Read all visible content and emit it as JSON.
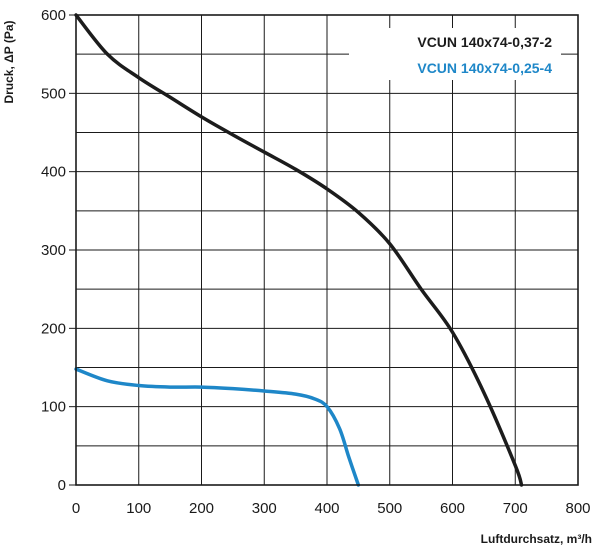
{
  "chart_data": {
    "type": "line",
    "title": "",
    "xlabel": "Luftdurchsatz, m³/h",
    "ylabel": "Druck, ΔP (Pa)",
    "xlim": [
      0,
      800
    ],
    "ylim": [
      0,
      600
    ],
    "x_ticks": [
      "0",
      "100",
      "200",
      "300",
      "400",
      "500",
      "600",
      "700",
      "800"
    ],
    "y_ticks": [
      "0",
      "100",
      "200",
      "300",
      "400",
      "500",
      "600"
    ],
    "grid": true,
    "legend_position": "top-right",
    "series": [
      {
        "name": "VCUN 140x74-0,37-2",
        "color": "#1c1c1c",
        "x": [
          0,
          50,
          100,
          150,
          200,
          250,
          300,
          350,
          400,
          450,
          500,
          550,
          600,
          650,
          700,
          710
        ],
        "y": [
          600,
          550,
          520,
          495,
          470,
          447,
          425,
          403,
          378,
          348,
          308,
          250,
          195,
          118,
          25,
          0
        ]
      },
      {
        "name": "VCUN 140x74-0,25-4",
        "color": "#1e87c8",
        "x": [
          0,
          50,
          100,
          150,
          200,
          250,
          300,
          350,
          380,
          400,
          420,
          435,
          450
        ],
        "y": [
          148,
          133,
          127,
          125,
          125,
          123,
          120,
          116,
          110,
          100,
          72,
          35,
          0
        ]
      }
    ]
  }
}
